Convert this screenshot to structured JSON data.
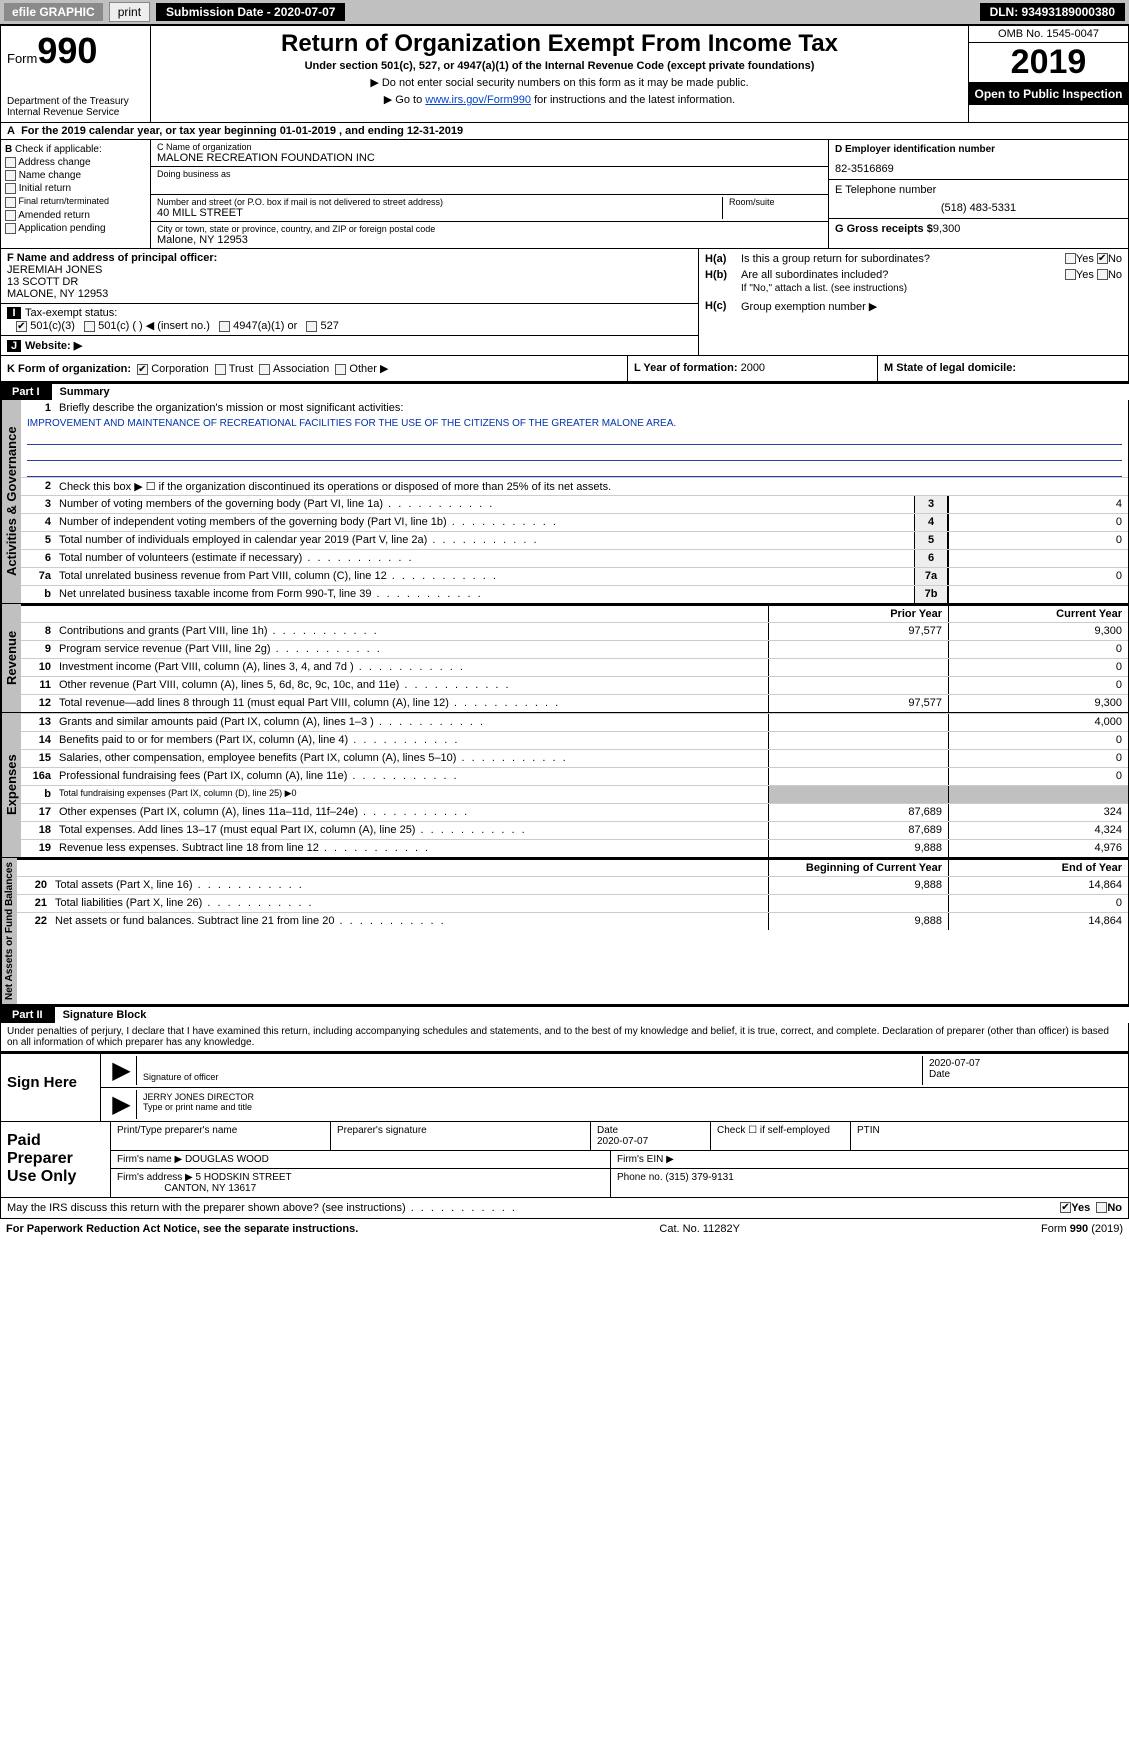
{
  "topbar": {
    "efile": "efile GRAPHIC",
    "print": "print",
    "submission": "Submission Date - 2020-07-07",
    "dln": "DLN: 93493189000380"
  },
  "header": {
    "form": "Form",
    "formnum": "990",
    "dept": "Department of the Treasury\nInternal Revenue Service",
    "title": "Return of Organization Exempt From Income Tax",
    "sub1": "Under section 501(c), 527, or 4947(a)(1) of the Internal Revenue Code (except private foundations)",
    "sub2": "▶ Do not enter social security numbers on this form as it may be made public.",
    "sub3_pre": "▶ Go to ",
    "sub3_link": "www.irs.gov/Form990",
    "sub3_post": " for instructions and the latest information.",
    "omb": "OMB No. 1545-0047",
    "year": "2019",
    "open": "Open to Public Inspection"
  },
  "rowA": {
    "label": "A",
    "text_pre": "For the 2019 calendar year, or tax year beginning ",
    "begin": "01-01-2019",
    "mid": " , and ending ",
    "end": "12-31-2019"
  },
  "colB": {
    "label": "B",
    "intro": "Check if applicable:",
    "items": [
      "Address change",
      "Name change",
      "Initial return",
      "Final return/terminated",
      "Amended return",
      "Application pending"
    ]
  },
  "colC": {
    "name_lab": "C Name of organization",
    "name": "MALONE RECREATION FOUNDATION INC",
    "dba_lab": "Doing business as",
    "dba": "",
    "street_lab": "Number and street (or P.O. box if mail is not delivered to street address)",
    "street": "40 MILL STREET",
    "room_lab": "Room/suite",
    "city_lab": "City or town, state or province, country, and ZIP or foreign postal code",
    "city": "Malone, NY  12953"
  },
  "colD": {
    "ein_lab": "D Employer identification number",
    "ein": "82-3516869",
    "phone_lab": "E Telephone number",
    "phone": "(518) 483-5331",
    "gross_lab": "G Gross receipts $",
    "gross": "9,300"
  },
  "rowF": {
    "lab": "F Name and address of principal officer:",
    "name": "JEREMIAH JONES",
    "addr1": "13 SCOTT DR",
    "addr2": "MALONE, NY  12953"
  },
  "rowIJ": {
    "tax_lab": "Tax-exempt status:",
    "opt_501c3": "501(c)(3)",
    "opt_501c": "501(c) (  ) ◀ (insert no.)",
    "opt_4947": "4947(a)(1) or",
    "opt_527": "527",
    "website_lab": "Website: ▶"
  },
  "colH": {
    "ha_lab": "H(a)",
    "ha_text": "Is this a group return for subordinates?",
    "hb_lab": "H(b)",
    "hb_text": "Are all subordinates included?",
    "hb_note": "If \"No,\" attach a list. (see instructions)",
    "hc_lab": "H(c)",
    "hc_text": "Group exemption number ▶",
    "yes": "Yes",
    "no": "No"
  },
  "rowK": {
    "k_lab": "K Form of organization:",
    "k_corp": "Corporation",
    "k_trust": "Trust",
    "k_assoc": "Association",
    "k_other": "Other ▶",
    "l_lab": "L Year of formation:",
    "l_val": "2000",
    "m_lab": "M State of legal domicile:",
    "m_val": ""
  },
  "part1": {
    "hdr": "Part I",
    "title": "Summary",
    "l1_lab": "Briefly describe the organization's mission or most significant activities:",
    "l1_text": "IMPROVEMENT AND MAINTENANCE OF RECREATIONAL FACILITIES FOR THE USE OF THE CITIZENS OF THE GREATER MALONE AREA.",
    "l2": "Check this box ▶ ☐ if the organization discontinued its operations or disposed of more than 25% of its net assets.",
    "lines_gov": [
      {
        "n": "3",
        "d": "Number of voting members of the governing body (Part VI, line 1a)",
        "box": "3",
        "v": "4"
      },
      {
        "n": "4",
        "d": "Number of independent voting members of the governing body (Part VI, line 1b)",
        "box": "4",
        "v": "0"
      },
      {
        "n": "5",
        "d": "Total number of individuals employed in calendar year 2019 (Part V, line 2a)",
        "box": "5",
        "v": "0"
      },
      {
        "n": "6",
        "d": "Total number of volunteers (estimate if necessary)",
        "box": "6",
        "v": ""
      },
      {
        "n": "7a",
        "d": "Total unrelated business revenue from Part VIII, column (C), line 12",
        "box": "7a",
        "v": "0"
      },
      {
        "n": "b",
        "d": "Net unrelated business taxable income from Form 990-T, line 39",
        "box": "7b",
        "v": ""
      }
    ],
    "col_prior": "Prior Year",
    "col_current": "Current Year",
    "lines_rev": [
      {
        "n": "8",
        "d": "Contributions and grants (Part VIII, line 1h)",
        "p": "97,577",
        "c": "9,300"
      },
      {
        "n": "9",
        "d": "Program service revenue (Part VIII, line 2g)",
        "p": "",
        "c": "0"
      },
      {
        "n": "10",
        "d": "Investment income (Part VIII, column (A), lines 3, 4, and 7d )",
        "p": "",
        "c": "0"
      },
      {
        "n": "11",
        "d": "Other revenue (Part VIII, column (A), lines 5, 6d, 8c, 9c, 10c, and 11e)",
        "p": "",
        "c": "0"
      },
      {
        "n": "12",
        "d": "Total revenue—add lines 8 through 11 (must equal Part VIII, column (A), line 12)",
        "p": "97,577",
        "c": "9,300"
      }
    ],
    "lines_exp": [
      {
        "n": "13",
        "d": "Grants and similar amounts paid (Part IX, column (A), lines 1–3 )",
        "p": "",
        "c": "4,000"
      },
      {
        "n": "14",
        "d": "Benefits paid to or for members (Part IX, column (A), line 4)",
        "p": "",
        "c": "0"
      },
      {
        "n": "15",
        "d": "Salaries, other compensation, employee benefits (Part IX, column (A), lines 5–10)",
        "p": "",
        "c": "0"
      },
      {
        "n": "16a",
        "d": "Professional fundraising fees (Part IX, column (A), line 11e)",
        "p": "",
        "c": "0"
      },
      {
        "n": "b",
        "d": "Total fundraising expenses (Part IX, column (D), line 25) ▶0",
        "p": "__GREY__",
        "c": "__GREY__"
      },
      {
        "n": "17",
        "d": "Other expenses (Part IX, column (A), lines 11a–11d, 11f–24e)",
        "p": "87,689",
        "c": "324"
      },
      {
        "n": "18",
        "d": "Total expenses. Add lines 13–17 (must equal Part IX, column (A), line 25)",
        "p": "87,689",
        "c": "4,324"
      },
      {
        "n": "19",
        "d": "Revenue less expenses. Subtract line 18 from line 12",
        "p": "9,888",
        "c": "4,976"
      }
    ],
    "col_beg": "Beginning of Current Year",
    "col_end": "End of Year",
    "lines_net": [
      {
        "n": "20",
        "d": "Total assets (Part X, line 16)",
        "p": "9,888",
        "c": "14,864"
      },
      {
        "n": "21",
        "d": "Total liabilities (Part X, line 26)",
        "p": "",
        "c": "0"
      },
      {
        "n": "22",
        "d": "Net assets or fund balances. Subtract line 21 from line 20",
        "p": "9,888",
        "c": "14,864"
      }
    ],
    "vlab_gov": "Activities & Governance",
    "vlab_rev": "Revenue",
    "vlab_exp": "Expenses",
    "vlab_net": "Net Assets or Fund Balances"
  },
  "part2": {
    "hdr": "Part II",
    "title": "Signature Block",
    "perjury": "Under penalties of perjury, I declare that I have examined this return, including accompanying schedules and statements, and to the best of my knowledge and belief, it is true, correct, and complete. Declaration of preparer (other than officer) is based on all information of which preparer has any knowledge.",
    "sign_here": "Sign Here",
    "sig_officer_lab": "Signature of officer",
    "sig_date": "2020-07-07",
    "date_lab": "Date",
    "name_title": "JERRY JONES  DIRECTOR",
    "name_title_lab": "Type or print name and title",
    "paid": "Paid Preparer Use Only",
    "prep_name_lab": "Print/Type preparer's name",
    "prep_sig_lab": "Preparer's signature",
    "prep_date_lab": "Date",
    "prep_date": "2020-07-07",
    "check_self": "Check ☐ if self-employed",
    "ptin_lab": "PTIN",
    "firm_name_lab": "Firm's name    ▶",
    "firm_name": "DOUGLAS WOOD",
    "firm_ein_lab": "Firm's EIN ▶",
    "firm_addr_lab": "Firm's address ▶",
    "firm_addr1": "5 HODSKIN STREET",
    "firm_addr2": "CANTON, NY  13617",
    "firm_phone_lab": "Phone no.",
    "firm_phone": "(315) 379-9131",
    "discuss": "May the IRS discuss this return with the preparer shown above? (see instructions)",
    "yes": "Yes",
    "no": "No"
  },
  "footer": {
    "left": "For Paperwork Reduction Act Notice, see the separate instructions.",
    "mid": "Cat. No. 11282Y",
    "right": "Form 990 (2019)"
  }
}
